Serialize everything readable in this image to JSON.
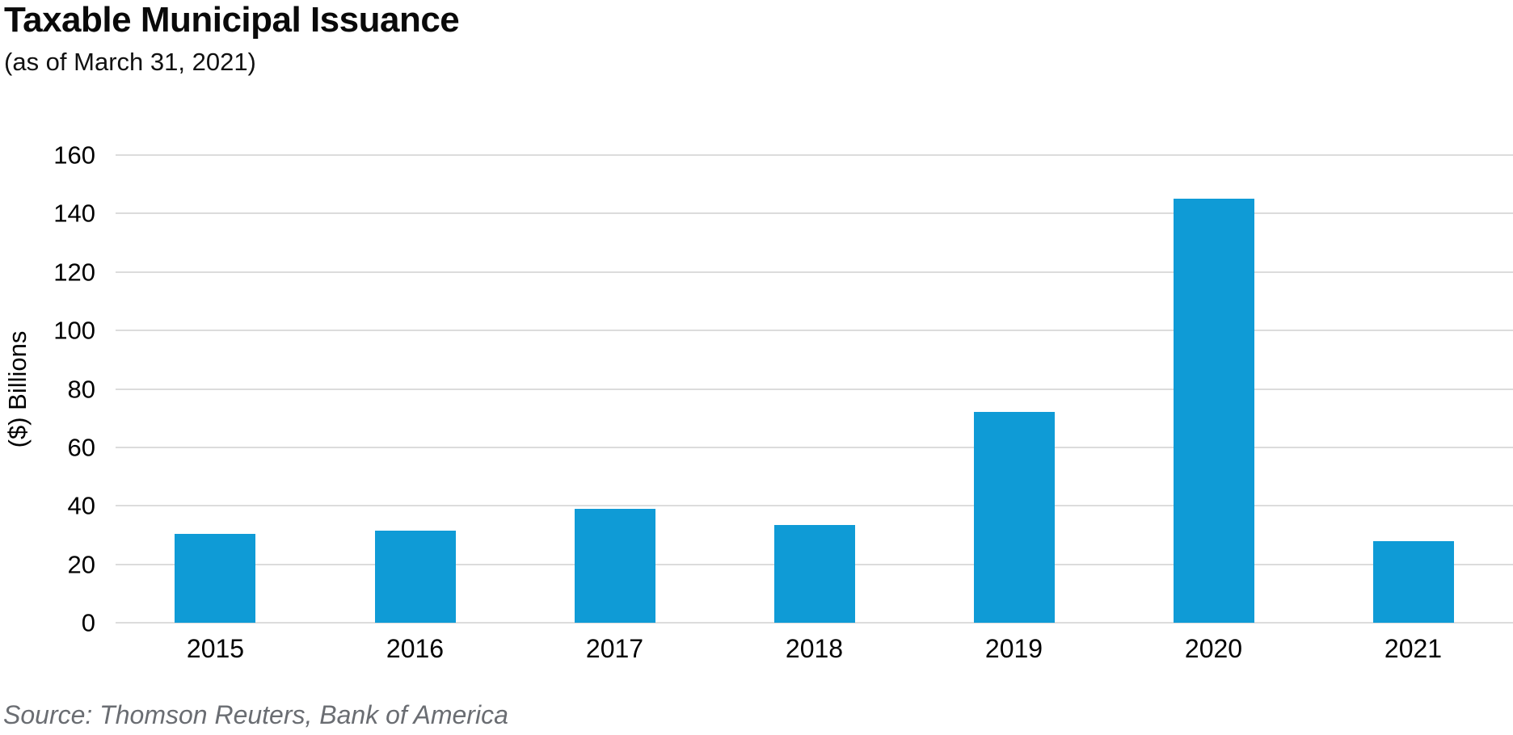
{
  "figure": {
    "title": "Taxable Municipal Issuance",
    "subtitle": "(as of March 31, 2021)",
    "source": "Source: Thomson Reuters, Bank of America"
  },
  "colors": {
    "bar": "#0f9bd6",
    "gridline": "#dcdcdc",
    "axis_text": "#000000",
    "source_text": "#6a6d72"
  },
  "chart_data": {
    "type": "bar",
    "title": "Taxable Municipal Issuance",
    "subtitle": "(as of March 31, 2021)",
    "categories": [
      "2015",
      "2016",
      "2017",
      "2018",
      "2019",
      "2020",
      "2021"
    ],
    "values": [
      30.5,
      31.5,
      39,
      33.5,
      72,
      145,
      28
    ],
    "xlabel": "",
    "ylabel": "($) Billions",
    "ylim": [
      0,
      160
    ],
    "yticks": [
      0,
      20,
      40,
      60,
      80,
      100,
      120,
      140,
      160
    ],
    "grid": "horizontal",
    "legend": "none",
    "bar_color": "#0f9bd6",
    "source": "Source: Thomson Reuters, Bank of America"
  }
}
